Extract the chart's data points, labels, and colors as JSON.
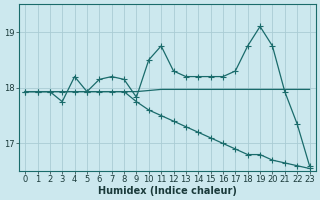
{
  "xlabel": "Humidex (Indice chaleur)",
  "bg_color": "#cce8ee",
  "grid_color": "#aaccd4",
  "line_color": "#1a6b6b",
  "xlim": [
    -0.5,
    23.5
  ],
  "ylim": [
    16.5,
    19.5
  ],
  "yticks": [
    17,
    18,
    19
  ],
  "xticks": [
    0,
    1,
    2,
    3,
    4,
    5,
    6,
    7,
    8,
    9,
    10,
    11,
    12,
    13,
    14,
    15,
    16,
    17,
    18,
    19,
    20,
    21,
    22,
    23
  ],
  "line1_x": [
    0,
    1,
    2,
    3,
    4,
    5,
    6,
    7,
    8,
    9,
    10,
    11,
    12,
    13,
    14,
    15,
    16,
    17,
    18,
    19,
    20,
    21,
    22,
    23
  ],
  "line1_y": [
    17.93,
    17.93,
    17.93,
    17.93,
    17.93,
    17.93,
    17.93,
    17.93,
    17.93,
    17.93,
    17.95,
    17.97,
    17.97,
    17.97,
    17.97,
    17.97,
    17.97,
    17.97,
    17.97,
    17.97,
    17.97,
    17.97,
    17.97,
    17.97
  ],
  "line2_x": [
    0,
    1,
    2,
    3,
    4,
    5,
    6,
    7,
    8,
    9,
    10,
    11,
    12,
    13,
    14,
    15,
    16,
    17,
    18,
    19,
    20,
    21,
    22,
    23
  ],
  "line2_y": [
    17.93,
    17.93,
    17.93,
    17.75,
    18.2,
    17.93,
    18.15,
    18.2,
    18.15,
    17.83,
    18.5,
    18.75,
    18.3,
    18.2,
    18.2,
    18.2,
    18.2,
    18.3,
    18.75,
    19.1,
    18.75,
    17.93,
    17.35,
    16.6
  ],
  "line3_x": [
    0,
    1,
    2,
    3,
    4,
    5,
    6,
    7,
    8,
    9,
    10,
    11,
    12,
    13,
    14,
    15,
    16,
    17,
    18,
    19,
    20,
    21,
    22,
    23
  ],
  "line3_y": [
    17.93,
    17.93,
    17.93,
    17.93,
    17.93,
    17.93,
    17.93,
    17.93,
    17.93,
    17.75,
    17.6,
    17.5,
    17.4,
    17.3,
    17.2,
    17.1,
    17.0,
    16.9,
    16.8,
    16.8,
    16.7,
    16.65,
    16.6,
    16.55
  ]
}
